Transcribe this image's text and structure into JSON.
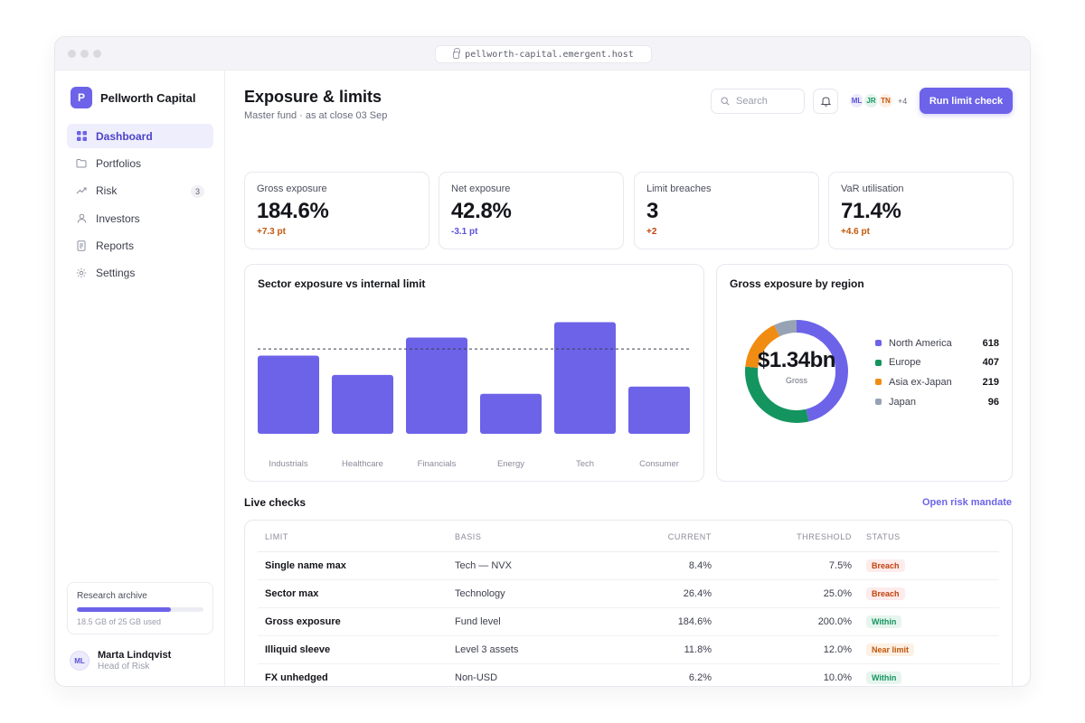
{
  "browser": {
    "url": "pellworth-capital.emergent.host"
  },
  "sidebar": {
    "brand": {
      "logo_letter": "P",
      "name": "Pellworth Capital"
    },
    "items": [
      {
        "label": "Dashboard",
        "icon": "grid-icon",
        "active": true
      },
      {
        "label": "Portfolios",
        "icon": "folder-icon"
      },
      {
        "label": "Risk",
        "icon": "trend-icon",
        "badge": "3"
      },
      {
        "label": "Investors",
        "icon": "user-icon"
      },
      {
        "label": "Reports",
        "icon": "document-icon"
      },
      {
        "label": "Settings",
        "icon": "gear-icon"
      }
    ],
    "archive": {
      "title": "Research archive",
      "usage": "18.5 GB of 25 GB used",
      "fraction": 0.74
    },
    "user": {
      "initials": "ML",
      "name": "Marta Lindqvist",
      "role": "Head of Risk"
    }
  },
  "header": {
    "title": "Exposure & limits",
    "subtitle": "Master fund · as at close 03 Sep",
    "search_placeholder": "Search",
    "avatars": [
      "ML",
      "JR",
      "TN"
    ],
    "avatars_more": "+4",
    "run_button": "Run limit check"
  },
  "stats": [
    {
      "label": "Gross exposure",
      "value": "184.6%",
      "delta": "+7.3 pt",
      "tone": "warn"
    },
    {
      "label": "Net exposure",
      "value": "42.8%",
      "delta": "-3.1 pt",
      "tone": "accent"
    },
    {
      "label": "Limit breaches",
      "value": "3",
      "delta": "+2",
      "tone": "bad"
    },
    {
      "label": "VaR utilisation",
      "value": "71.4%",
      "delta": "+4.6 pt",
      "tone": "warn"
    }
  ],
  "colors": {
    "accent": "#6c63e9",
    "warn": "#c2570c",
    "bad": "#c2410c",
    "north_america": "#6c63e9",
    "europe": "#14955f",
    "asia": "#f08c12",
    "japan": "#97a3b4"
  },
  "sector_chart": {
    "title": "Sector exposure vs internal limit",
    "chart_data": {
      "type": "bar",
      "categories": [
        "Industrials",
        "Healthcare",
        "Financials",
        "Energy",
        "Tech",
        "Consumer"
      ],
      "values": [
        29.5,
        22.2,
        36.3,
        15.1,
        42.1,
        17.8
      ],
      "limit": 32.0,
      "ylim": [
        0,
        45
      ],
      "grid": false
    }
  },
  "region_chart": {
    "title": "Gross exposure by region",
    "center_value": "$1.34bn",
    "center_label": "Gross",
    "chart_data": {
      "type": "pie",
      "categories": [
        "North America",
        "Europe",
        "Asia ex-Japan",
        "Japan"
      ],
      "values": [
        618,
        407,
        219,
        96
      ]
    }
  },
  "checks": {
    "title": "Live checks",
    "link": "Open risk mandate",
    "columns": [
      "LIMIT",
      "BASIS",
      "CURRENT",
      "THRESHOLD",
      "STATUS"
    ],
    "rows": [
      {
        "limit": "Single name max",
        "basis": "Tech — NVX",
        "current": "8.4%",
        "threshold": "7.5%",
        "status": "Breach"
      },
      {
        "limit": "Sector max",
        "basis": "Technology",
        "current": "26.4%",
        "threshold": "25.0%",
        "status": "Breach"
      },
      {
        "limit": "Gross exposure",
        "basis": "Fund level",
        "current": "184.6%",
        "threshold": "200.0%",
        "status": "Within"
      },
      {
        "limit": "Illiquid sleeve",
        "basis": "Level 3 assets",
        "current": "11.8%",
        "threshold": "12.0%",
        "status": "Near limit"
      },
      {
        "limit": "FX unhedged",
        "basis": "Non-USD",
        "current": "6.2%",
        "threshold": "10.0%",
        "status": "Within"
      }
    ]
  }
}
